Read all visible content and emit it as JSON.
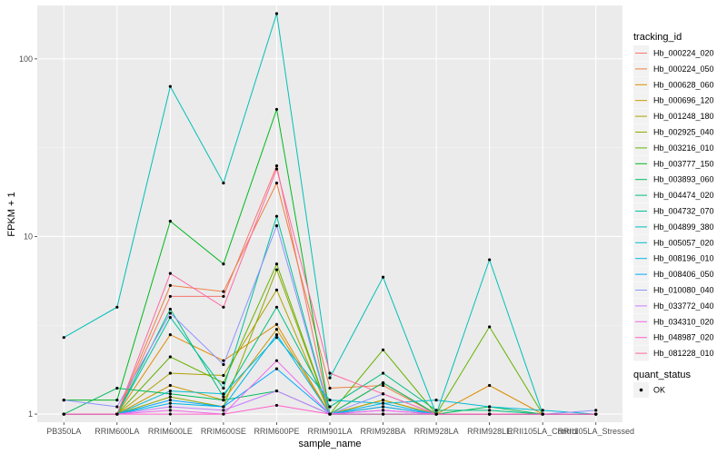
{
  "chart_data": {
    "type": "line",
    "y_scale": "log10",
    "ylim": [
      0.9,
      200
    ],
    "y_ticks": [
      1,
      10,
      100
    ],
    "y_tick_labels": [
      "1",
      "10",
      "100"
    ],
    "xlabel": "sample_name",
    "ylabel": "FPKM + 1",
    "grid": true,
    "legend_position": "right",
    "categories": [
      "PB350LA",
      "RRIM600LA",
      "RRIM600LE",
      "RRIM600SE",
      "RRIM600PE",
      "RRIM901LA",
      "RRIM928BA",
      "RRIM928LA",
      "RRIM928LE",
      "RRII105LA_Control",
      "RRII105LA_Stressed"
    ],
    "legend_title": "tracking_id",
    "series": [
      {
        "name": "Hb_000224_020",
        "color": "#F8766D",
        "values": [
          1.0,
          1.0,
          4.6,
          4.6,
          25,
          1.0,
          1.5,
          1.0,
          1.0,
          1.0,
          1.0
        ]
      },
      {
        "name": "Hb_000224_050",
        "color": "#EE8043",
        "values": [
          1.0,
          1.0,
          5.3,
          4.9,
          20,
          1.4,
          1.45,
          1.0,
          1.0,
          1.0,
          1.0
        ]
      },
      {
        "name": "Hb_000628_060",
        "color": "#DE8C00",
        "values": [
          1.0,
          1.0,
          2.8,
          2.0,
          3.2,
          1.0,
          1.2,
          1.0,
          1.45,
          1.0,
          1.0
        ]
      },
      {
        "name": "Hb_000696_120",
        "color": "#C99800",
        "values": [
          1.0,
          1.0,
          1.45,
          1.2,
          3.0,
          1.0,
          1.1,
          1.0,
          1.0,
          1.0,
          1.0
        ]
      },
      {
        "name": "Hb_001248_180",
        "color": "#B0A100",
        "values": [
          1.0,
          1.0,
          1.7,
          1.65,
          5.0,
          1.0,
          1.2,
          1.0,
          1.0,
          1.0,
          1.0
        ]
      },
      {
        "name": "Hb_002925_040",
        "color": "#8FAA00",
        "values": [
          1.0,
          1.0,
          1.25,
          1.1,
          6.5,
          1.0,
          1.0,
          1.0,
          1.0,
          1.0,
          1.0
        ]
      },
      {
        "name": "Hb_003216_010",
        "color": "#64B200",
        "values": [
          1.0,
          1.0,
          2.1,
          1.5,
          7.0,
          1.0,
          2.3,
          1.0,
          3.1,
          1.0,
          1.0
        ]
      },
      {
        "name": "Hb_003777_150",
        "color": "#00B81F",
        "values": [
          1.2,
          1.2,
          12.2,
          7.0,
          52,
          1.0,
          1.0,
          1.0,
          1.0,
          1.0,
          1.0
        ]
      },
      {
        "name": "Hb_003893_060",
        "color": "#00BC59",
        "values": [
          1.0,
          1.4,
          1.3,
          1.2,
          1.35,
          1.0,
          1.5,
          1.0,
          1.1,
          1.0,
          1.0
        ]
      },
      {
        "name": "Hb_004474_020",
        "color": "#00BF7D",
        "values": [
          1.0,
          1.0,
          3.9,
          1.25,
          4.0,
          1.1,
          1.7,
          1.05,
          1.05,
          1.0,
          1.0
        ]
      },
      {
        "name": "Hb_004732_070",
        "color": "#00C19C",
        "values": [
          1.0,
          1.0,
          3.5,
          1.4,
          13,
          1.0,
          1.0,
          1.0,
          1.0,
          1.0,
          1.0
        ]
      },
      {
        "name": "Hb_004899_380",
        "color": "#00C0B7",
        "values": [
          2.7,
          4.0,
          70,
          20,
          180,
          1.6,
          5.9,
          1.0,
          7.4,
          1.0,
          1.0
        ]
      },
      {
        "name": "Hb_005057_020",
        "color": "#00BCD1",
        "values": [
          1.0,
          1.0,
          1.35,
          1.3,
          2.7,
          1.2,
          1.15,
          1.2,
          1.1,
          1.05,
          1.0
        ]
      },
      {
        "name": "Hb_008196_010",
        "color": "#00B5E8",
        "values": [
          1.0,
          1.0,
          1.15,
          1.1,
          2.8,
          1.0,
          1.15,
          1.0,
          1.0,
          1.0,
          1.0
        ]
      },
      {
        "name": "Hb_008406_050",
        "color": "#00A9FF",
        "values": [
          1.0,
          1.0,
          1.2,
          1.1,
          1.8,
          1.0,
          1.1,
          1.0,
          1.0,
          1.0,
          1.0
        ]
      },
      {
        "name": "Hb_010080_040",
        "color": "#8E92FF",
        "values": [
          1.2,
          1.1,
          3.7,
          1.9,
          11.5,
          1.0,
          1.3,
          1.0,
          1.0,
          1.0,
          1.05
        ]
      },
      {
        "name": "Hb_033772_040",
        "color": "#C77CFF",
        "values": [
          1.0,
          1.0,
          1.1,
          1.05,
          1.35,
          1.0,
          1.05,
          1.0,
          1.0,
          1.0,
          1.0
        ]
      },
      {
        "name": "Hb_034310_020",
        "color": "#F066EA",
        "values": [
          1.0,
          1.0,
          1.05,
          1.0,
          2.0,
          1.0,
          1.05,
          1.0,
          1.0,
          1.0,
          1.0
        ]
      },
      {
        "name": "Hb_048987_020",
        "color": "#FF61C9",
        "values": [
          1.0,
          1.0,
          1.0,
          1.0,
          1.12,
          1.0,
          1.0,
          1.0,
          1.0,
          1.0,
          1.0
        ]
      },
      {
        "name": "Hb_081228_010",
        "color": "#FF67A4",
        "values": [
          1.0,
          1.0,
          6.2,
          4.0,
          24,
          1.7,
          1.3,
          1.0,
          1.0,
          1.0,
          1.0
        ]
      }
    ],
    "quant_status_legend": {
      "title": "quant_status",
      "entries": [
        "OK"
      ]
    }
  }
}
